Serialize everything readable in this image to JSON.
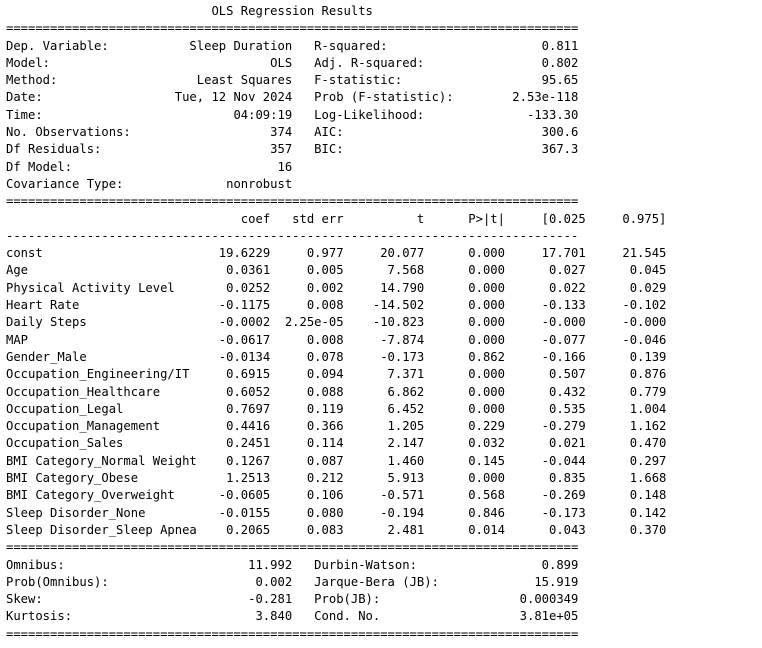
{
  "title": "OLS Regression Results",
  "summary": {
    "left": [
      {
        "label": "Dep. Variable:",
        "value": "Sleep Duration"
      },
      {
        "label": "Model:",
        "value": "OLS"
      },
      {
        "label": "Method:",
        "value": "Least Squares"
      },
      {
        "label": "Date:",
        "value": "Tue, 12 Nov 2024"
      },
      {
        "label": "Time:",
        "value": "04:09:19"
      },
      {
        "label": "No. Observations:",
        "value": "374"
      },
      {
        "label": "Df Residuals:",
        "value": "357"
      },
      {
        "label": "Df Model:",
        "value": "16"
      },
      {
        "label": "Covariance Type:",
        "value": "nonrobust"
      }
    ],
    "right": [
      {
        "label": "R-squared:",
        "value": "0.811"
      },
      {
        "label": "Adj. R-squared:",
        "value": "0.802"
      },
      {
        "label": "F-statistic:",
        "value": "95.65"
      },
      {
        "label": "Prob (F-statistic):",
        "value": "2.53e-118"
      },
      {
        "label": "Log-Likelihood:",
        "value": "-133.30"
      },
      {
        "label": "AIC:",
        "value": "300.6"
      },
      {
        "label": "BIC:",
        "value": "367.3"
      }
    ]
  },
  "coef_table": {
    "headers": [
      "coef",
      "std err",
      "t",
      "P>|t|",
      "[0.025",
      "0.975]"
    ],
    "rows": [
      [
        "const",
        "19.6229",
        "0.977",
        "20.077",
        "0.000",
        "17.701",
        "21.545"
      ],
      [
        "Age",
        "0.0361",
        "0.005",
        "7.568",
        "0.000",
        "0.027",
        "0.045"
      ],
      [
        "Physical Activity Level",
        "0.0252",
        "0.002",
        "14.790",
        "0.000",
        "0.022",
        "0.029"
      ],
      [
        "Heart Rate",
        "-0.1175",
        "0.008",
        "-14.502",
        "0.000",
        "-0.133",
        "-0.102"
      ],
      [
        "Daily Steps",
        "-0.0002",
        "2.25e-05",
        "-10.823",
        "0.000",
        "-0.000",
        "-0.000"
      ],
      [
        "MAP",
        "-0.0617",
        "0.008",
        "-7.874",
        "0.000",
        "-0.077",
        "-0.046"
      ],
      [
        "Gender_Male",
        "-0.0134",
        "0.078",
        "-0.173",
        "0.862",
        "-0.166",
        "0.139"
      ],
      [
        "Occupation_Engineering/IT",
        "0.6915",
        "0.094",
        "7.371",
        "0.000",
        "0.507",
        "0.876"
      ],
      [
        "Occupation_Healthcare",
        "0.6052",
        "0.088",
        "6.862",
        "0.000",
        "0.432",
        "0.779"
      ],
      [
        "Occupation_Legal",
        "0.7697",
        "0.119",
        "6.452",
        "0.000",
        "0.535",
        "1.004"
      ],
      [
        "Occupation_Management",
        "0.4416",
        "0.366",
        "1.205",
        "0.229",
        "-0.279",
        "1.162"
      ],
      [
        "Occupation_Sales",
        "0.2451",
        "0.114",
        "2.147",
        "0.032",
        "0.021",
        "0.470"
      ],
      [
        "BMI Category_Normal Weight",
        "0.1267",
        "0.087",
        "1.460",
        "0.145",
        "-0.044",
        "0.297"
      ],
      [
        "BMI Category_Obese",
        "1.2513",
        "0.212",
        "5.913",
        "0.000",
        "0.835",
        "1.668"
      ],
      [
        "BMI Category_Overweight",
        "-0.0605",
        "0.106",
        "-0.571",
        "0.568",
        "-0.269",
        "0.148"
      ],
      [
        "Sleep Disorder_None",
        "-0.0155",
        "0.080",
        "-0.194",
        "0.846",
        "-0.173",
        "0.142"
      ],
      [
        "Sleep Disorder_Sleep Apnea",
        "0.2065",
        "0.083",
        "2.481",
        "0.014",
        "0.043",
        "0.370"
      ]
    ]
  },
  "diagnostics": {
    "left": [
      {
        "label": "Omnibus:",
        "value": "11.992"
      },
      {
        "label": "Prob(Omnibus):",
        "value": "0.002"
      },
      {
        "label": "Skew:",
        "value": "-0.281"
      },
      {
        "label": "Kurtosis:",
        "value": "3.840"
      }
    ],
    "right": [
      {
        "label": "Durbin-Watson:",
        "value": "0.899"
      },
      {
        "label": "Jarque-Bera (JB):",
        "value": "15.919"
      },
      {
        "label": "Prob(JB):",
        "value": "0.000349"
      },
      {
        "label": "Cond. No.",
        "value": "3.81e+05"
      }
    ]
  }
}
